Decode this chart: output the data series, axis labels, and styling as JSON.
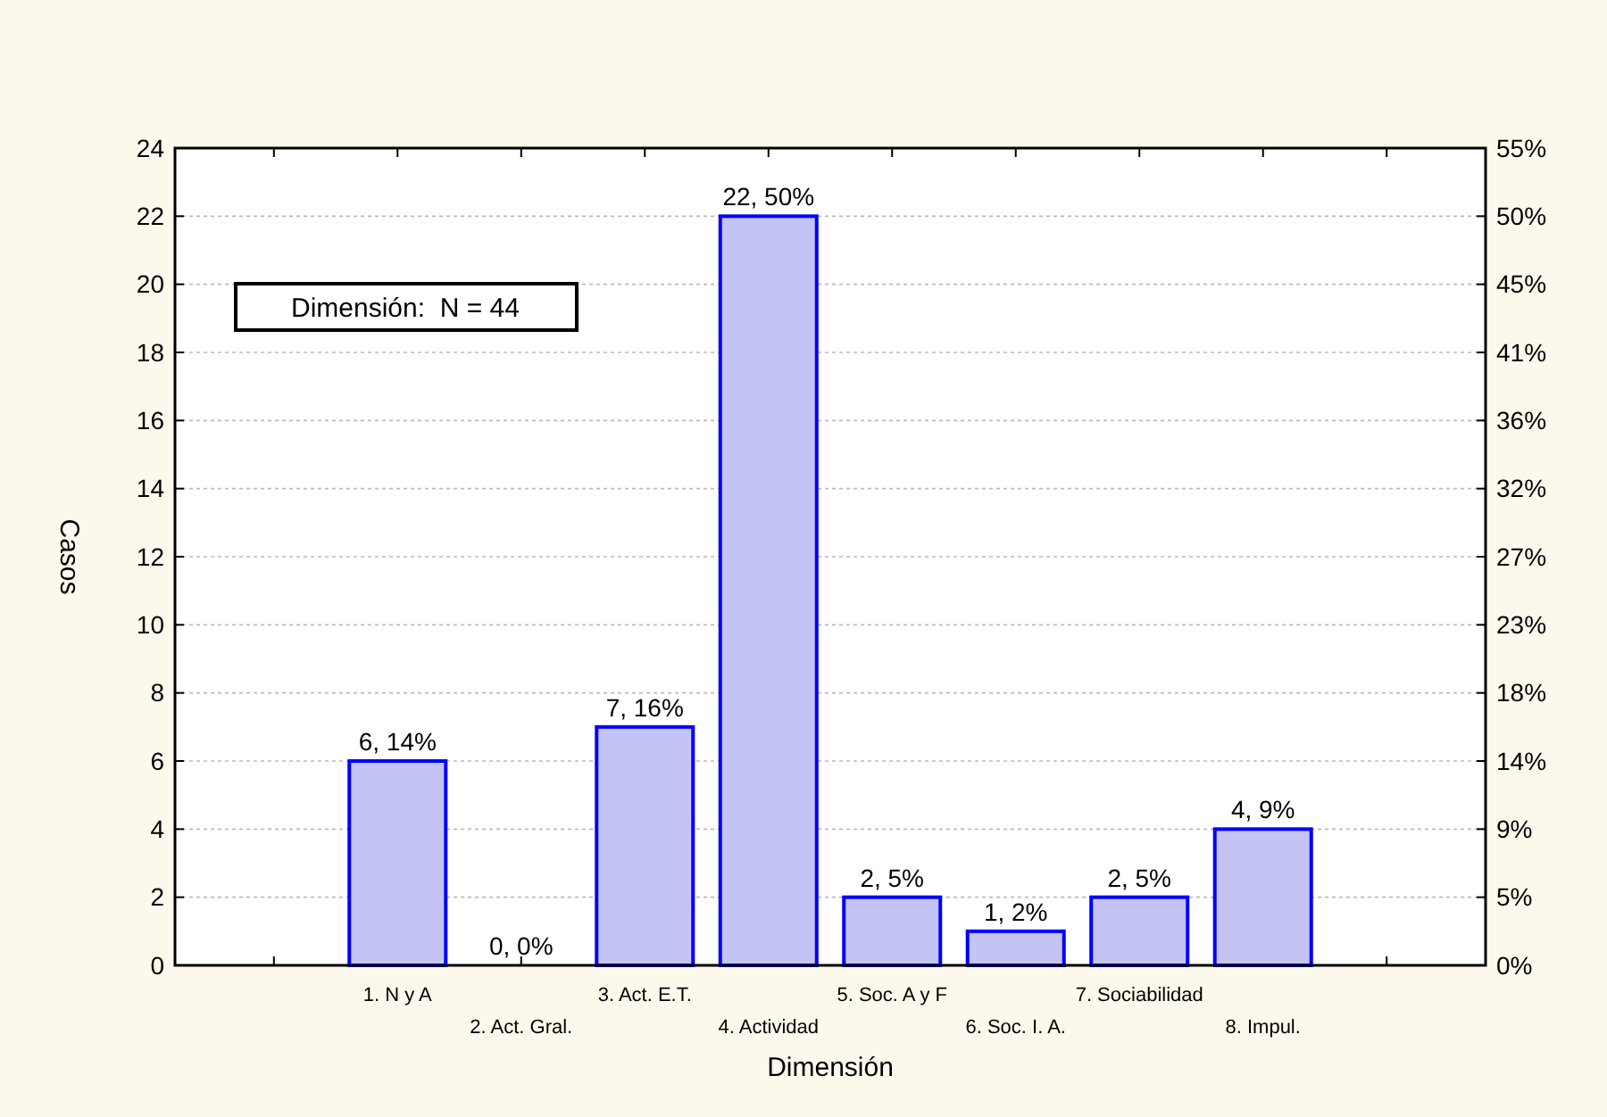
{
  "chart_data": {
    "type": "bar",
    "xlabel": "Dimensión",
    "ylabel": "Casos",
    "categories": [
      "1. N y A",
      "2. Act. Gral.",
      "3. Act. E.T.",
      "4. Actividad",
      "5. Soc. A y F",
      "6. Soc. I. A.",
      "7. Sociabilidad",
      "8. Impul."
    ],
    "values": [
      6,
      0,
      7,
      22,
      2,
      1,
      2,
      4
    ],
    "value_labels": [
      "6, 14%",
      "0, 0%",
      "7, 16%",
      "22, 50%",
      "2, 5%",
      "1, 2%",
      "2, 5%",
      "4, 9%"
    ],
    "color": "#c4c4f4",
    "ylim": [
      0,
      24
    ],
    "yticks": [
      0,
      2,
      4,
      6,
      8,
      10,
      12,
      14,
      16,
      18,
      20,
      22,
      24
    ],
    "y2lim": [
      0,
      54.545
    ],
    "y2ticks": [
      {
        "value": 0,
        "label": "0%"
      },
      {
        "value": 4.545,
        "label": "5%"
      },
      {
        "value": 9.091,
        "label": "9%"
      },
      {
        "value": 13.636,
        "label": "14%"
      },
      {
        "value": 18.182,
        "label": "18%"
      },
      {
        "value": 22.727,
        "label": "23%"
      },
      {
        "value": 27.273,
        "label": "27%"
      },
      {
        "value": 31.818,
        "label": "32%"
      },
      {
        "value": 36.364,
        "label": "36%"
      },
      {
        "value": 40.909,
        "label": "41%"
      },
      {
        "value": 45.455,
        "label": "45%"
      },
      {
        "value": 50,
        "label": "50%"
      },
      {
        "value": 54.545,
        "label": "55%"
      }
    ],
    "grid": "y",
    "annotations": [
      "Dimensión:  N = 44"
    ]
  }
}
